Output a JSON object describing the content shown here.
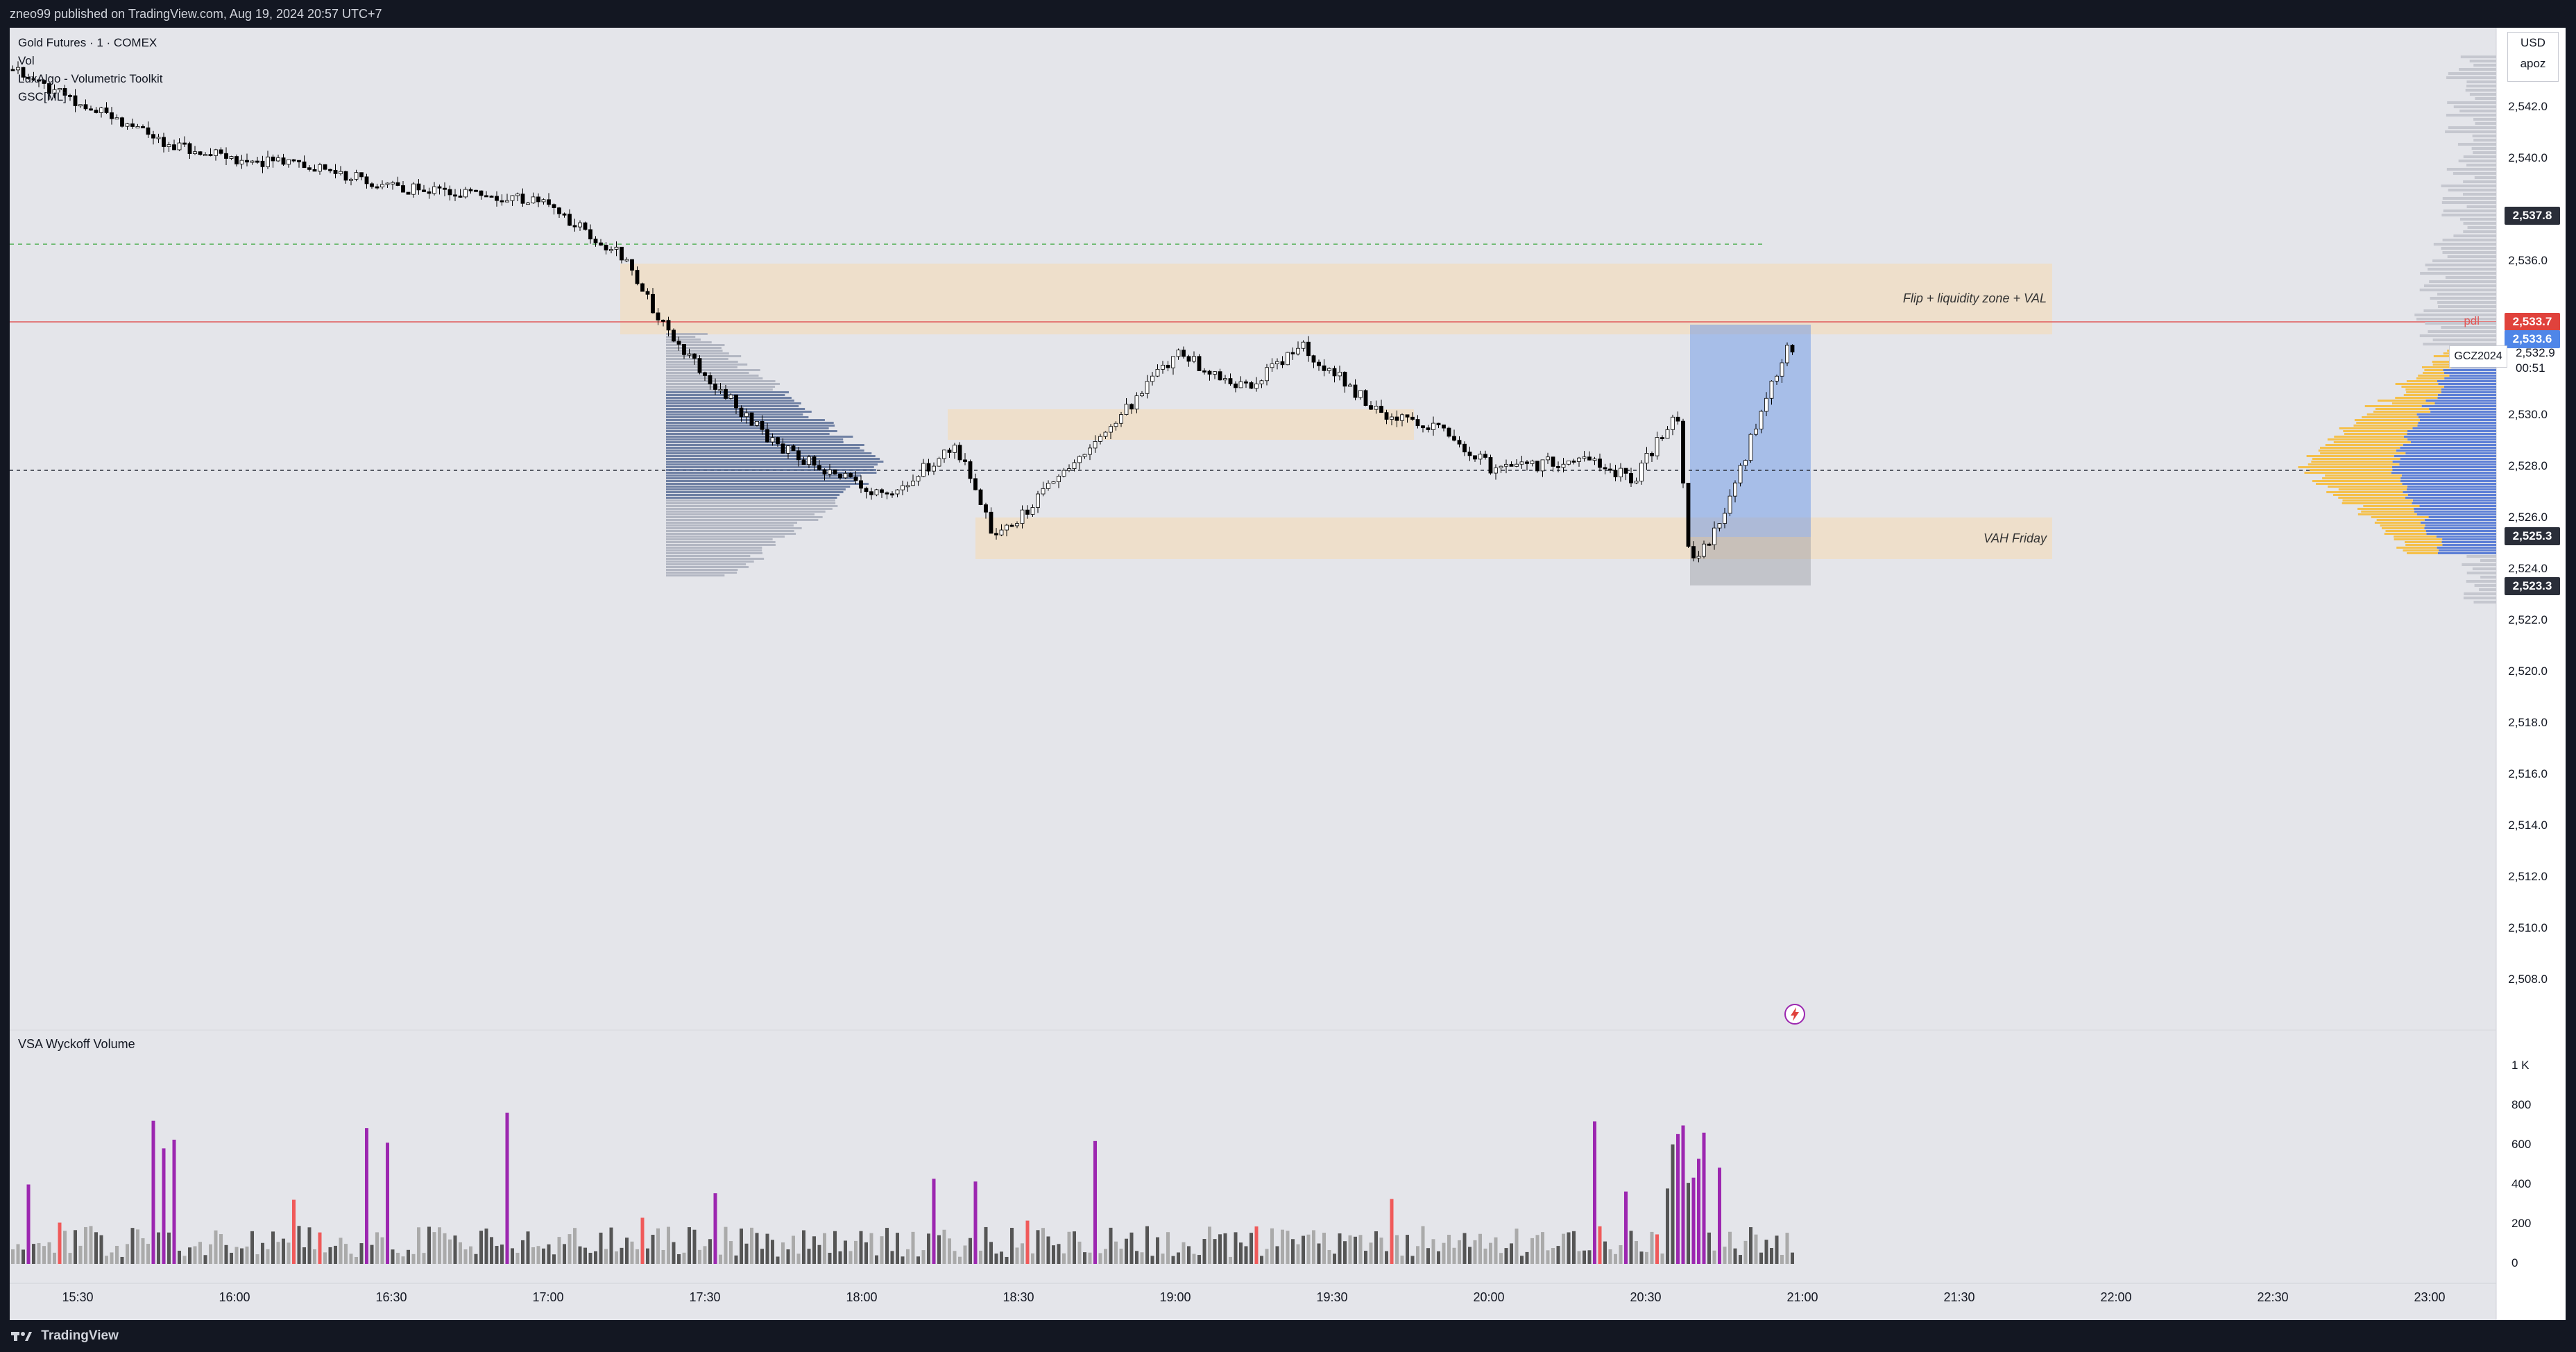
{
  "header": {
    "title": "zneo99 published on TradingView.com, Aug 19, 2024 20:57 UTC+7"
  },
  "footer": {
    "brand": "TradingView"
  },
  "legend": {
    "symbol": "Gold Futures · 1 · COMEX",
    "line2": "Vol",
    "indicator1": "LuxAlgo - Volumetric Toolkit",
    "indicator2": "GSC[ML]"
  },
  "price_axis": {
    "currency": "USD",
    "scale_label": "apoz",
    "labels": [
      "2,542.0",
      "2,540.0",
      "2,536.0",
      "2,530.0",
      "2,528.0",
      "2,526.0",
      "2,524.0",
      "2,522.0",
      "2,520.0",
      "2,518.0",
      "2,516.0",
      "2,514.0",
      "2,512.0",
      "2,510.0",
      "2,508.0"
    ],
    "tags": {
      "high": "2,537.8",
      "pdl_price": "2,533.7",
      "blue_price": "2,533.6",
      "upper_zone": "2,525.3",
      "lower_zone": "2,523.3"
    },
    "ticker": "GCZ2024",
    "ticker_price": "2,532.9",
    "countdown": "00:51",
    "pdl_label": "pdl"
  },
  "time_axis": {
    "labels": [
      "15:30",
      "16:00",
      "16:30",
      "17:00",
      "17:30",
      "18:00",
      "18:30",
      "19:00",
      "19:30",
      "20:00",
      "20:30",
      "21:00",
      "21:30",
      "22:00",
      "22:30",
      "23:00"
    ]
  },
  "zones": {
    "upper": "Flip + liquidity zone + VAL",
    "lower": "VAH Friday"
  },
  "volume_panel": {
    "title": "VSA Wyckoff Volume",
    "axis_labels": [
      "1 K",
      "800",
      "600",
      "400",
      "200",
      "0"
    ]
  },
  "colors": {
    "bull_candle": "#ffffff",
    "bear_candle": "#000000",
    "zone_fill": "#f2dcc0",
    "profile_blue": "#5d7fd6",
    "profile_yellow": "#f5c04a",
    "pdl_line": "#e05a5a",
    "vol_purple": "#9c27b0",
    "vol_red": "#f05a5a"
  }
}
